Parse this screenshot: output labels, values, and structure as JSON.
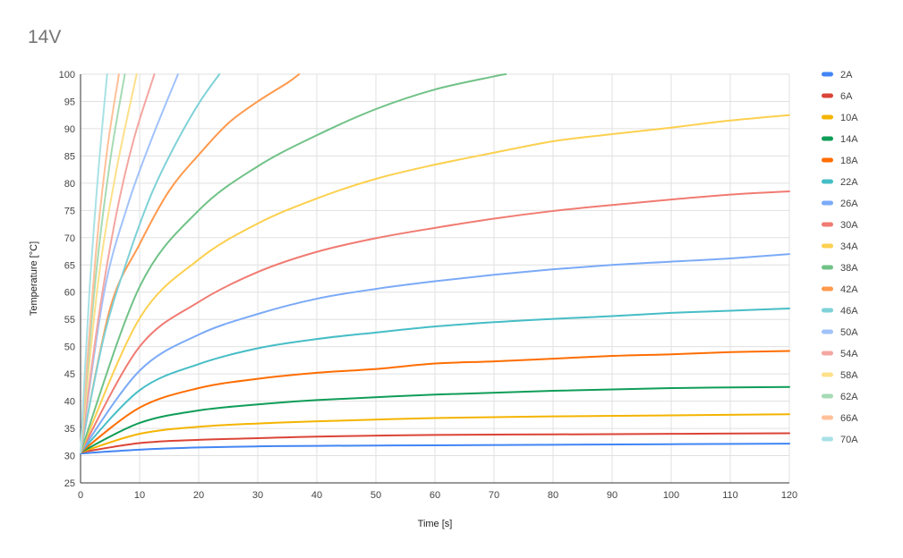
{
  "chart_data": {
    "type": "line",
    "title": "14V",
    "xlabel": "Time [s]",
    "ylabel": "Temperature [°C]",
    "xlim": [
      0,
      120
    ],
    "ylim": [
      25,
      100
    ],
    "x_ticks": [
      "0",
      "10",
      "20",
      "30",
      "40",
      "50",
      "60",
      "70",
      "80",
      "90",
      "100",
      "110",
      "120"
    ],
    "y_ticks": [
      "25",
      "30",
      "35",
      "40",
      "45",
      "50",
      "55",
      "60",
      "65",
      "70",
      "75",
      "80",
      "85",
      "90",
      "95",
      "100"
    ],
    "grid": true,
    "legend_position": "right",
    "series": [
      {
        "name": "2A",
        "color": "#4285f4",
        "x": [
          0,
          10,
          20,
          30,
          40,
          60,
          80,
          100,
          120
        ],
        "y": [
          30.4,
          31.1,
          31.5,
          31.7,
          31.8,
          31.9,
          32.0,
          32.1,
          32.2
        ]
      },
      {
        "name": "6A",
        "color": "#db4437",
        "x": [
          0,
          10,
          20,
          30,
          40,
          60,
          80,
          100,
          120
        ],
        "y": [
          30.6,
          32.3,
          32.9,
          33.2,
          33.5,
          33.8,
          33.9,
          34.0,
          34.1
        ]
      },
      {
        "name": "10A",
        "color": "#f4b400",
        "x": [
          0,
          10,
          20,
          30,
          40,
          60,
          80,
          100,
          120
        ],
        "y": [
          30.6,
          34.0,
          35.3,
          35.9,
          36.3,
          36.9,
          37.2,
          37.4,
          37.6
        ]
      },
      {
        "name": "14A",
        "color": "#0f9d58",
        "x": [
          0,
          10,
          20,
          30,
          40,
          60,
          80,
          100,
          120
        ],
        "y": [
          30.6,
          36.0,
          38.3,
          39.4,
          40.2,
          41.2,
          41.9,
          42.4,
          42.6
        ]
      },
      {
        "name": "18A",
        "color": "#ff6d01",
        "x": [
          0,
          10,
          20,
          30,
          40,
          50,
          60,
          70,
          80,
          90,
          100,
          110,
          120
        ],
        "y": [
          30.6,
          38.8,
          42.4,
          44.1,
          45.2,
          45.9,
          46.9,
          47.3,
          47.8,
          48.3,
          48.6,
          49.0,
          49.2
        ]
      },
      {
        "name": "22A",
        "color": "#46bdc6",
        "x": [
          0,
          10,
          20,
          30,
          40,
          50,
          60,
          70,
          80,
          90,
          100,
          110,
          120
        ],
        "y": [
          30.6,
          42.0,
          46.8,
          49.7,
          51.4,
          52.6,
          53.7,
          54.5,
          55.1,
          55.6,
          56.2,
          56.6,
          57.0
        ]
      },
      {
        "name": "26A",
        "color": "#7baaf7",
        "x": [
          0,
          10,
          20,
          30,
          40,
          50,
          60,
          70,
          80,
          90,
          100,
          110,
          120
        ],
        "y": [
          30.6,
          45.6,
          52.2,
          56.0,
          58.8,
          60.6,
          62.0,
          63.2,
          64.2,
          65.0,
          65.6,
          66.2,
          67.0
        ]
      },
      {
        "name": "30A",
        "color": "#f07b72",
        "x": [
          0,
          10,
          20,
          30,
          40,
          50,
          60,
          70,
          80,
          90,
          100,
          110,
          120
        ],
        "y": [
          30.6,
          50.0,
          58.2,
          63.7,
          67.4,
          69.9,
          71.8,
          73.5,
          74.9,
          76.0,
          77.0,
          77.9,
          78.5
        ]
      },
      {
        "name": "34A",
        "color": "#fcd04f",
        "x": [
          0,
          10,
          20,
          30,
          40,
          50,
          60,
          70,
          80,
          90,
          100,
          110,
          120
        ],
        "y": [
          30.6,
          55.2,
          66.0,
          72.6,
          77.2,
          80.8,
          83.4,
          85.6,
          87.7,
          89.0,
          90.2,
          91.5,
          92.5
        ]
      },
      {
        "name": "38A",
        "color": "#71c287",
        "x": [
          0,
          10,
          20,
          30,
          40,
          50,
          60,
          70,
          72
        ],
        "y": [
          30.6,
          61.0,
          75.0,
          83.1,
          88.8,
          93.6,
          97.2,
          99.6,
          100.0
        ]
      },
      {
        "name": "42A",
        "color": "#ff994d",
        "x": [
          0,
          5,
          10,
          15,
          20,
          25,
          30,
          35,
          37
        ],
        "y": [
          30.6,
          57.0,
          68.8,
          78.6,
          85.2,
          91.0,
          95.0,
          98.4,
          100.0
        ]
      },
      {
        "name": "46A",
        "color": "#7ed1d7",
        "x": [
          0,
          4,
          8,
          12,
          16,
          20,
          23.5
        ],
        "y": [
          30.6,
          52.0,
          66.2,
          78.0,
          87.0,
          94.6,
          100.0
        ]
      },
      {
        "name": "50A",
        "color": "#a1c2fa",
        "x": [
          0,
          4,
          8,
          12,
          16.5
        ],
        "y": [
          30.6,
          60.0,
          76.0,
          88.0,
          100.0
        ]
      },
      {
        "name": "54A",
        "color": "#f4a6a1",
        "x": [
          0,
          3,
          6,
          9,
          12.5
        ],
        "y": [
          30.6,
          55.0,
          74.0,
          88.0,
          100.0
        ]
      },
      {
        "name": "58A",
        "color": "#fde08a",
        "x": [
          0,
          3,
          6,
          9.5
        ],
        "y": [
          30.6,
          62.0,
          82.0,
          100.0
        ]
      },
      {
        "name": "62A",
        "color": "#a6dbb4",
        "x": [
          0,
          2.5,
          5,
          7.5
        ],
        "y": [
          30.6,
          62.0,
          84.0,
          100.0
        ]
      },
      {
        "name": "66A",
        "color": "#ffc099",
        "x": [
          0,
          2.5,
          4.5,
          6.5
        ],
        "y": [
          30.6,
          66.0,
          86.0,
          100.0
        ]
      },
      {
        "name": "70A",
        "color": "#a9e1e5",
        "x": [
          0,
          1.5,
          3,
          4.5
        ],
        "y": [
          30.6,
          60.0,
          82.0,
          100.0
        ]
      }
    ]
  }
}
